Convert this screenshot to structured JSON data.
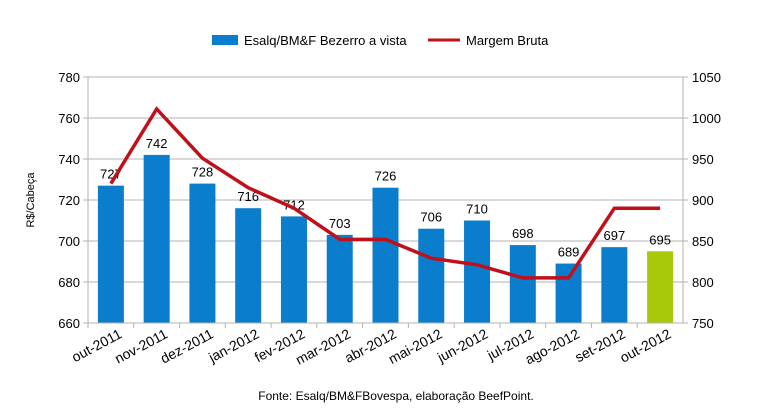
{
  "chart_data": {
    "type": "bar+line",
    "categories": [
      "out-2011",
      "nov-2011",
      "dez-2011",
      "jan-2012",
      "fev-2012",
      "mar-2012",
      "abr-2012",
      "mai-2012",
      "jun-2012",
      "jul-2012",
      "ago-2012",
      "set-2012",
      "out-2012"
    ],
    "series": [
      {
        "name": "Esalq/BM&F Bezerro a vista",
        "type": "bar",
        "axis": "left",
        "values": [
          727,
          742,
          728,
          716,
          712,
          703,
          726,
          706,
          710,
          698,
          689,
          697,
          695
        ],
        "color": "#0a7dcc",
        "highlight_last_color": "#a8c80a"
      },
      {
        "name": "Margem Bruta",
        "type": "line",
        "axis": "right",
        "values": [
          920,
          1011,
          951,
          915,
          890,
          852,
          852,
          829,
          821,
          805,
          805,
          890,
          890
        ],
        "color": "#c0101a"
      }
    ],
    "ylabel": "R$/Cabeça",
    "ylim": [
      660,
      780
    ],
    "yticks": [
      660,
      680,
      700,
      720,
      740,
      760,
      780
    ],
    "y2lim": [
      750,
      1050
    ],
    "y2ticks": [
      750,
      800,
      850,
      900,
      950,
      1000,
      1050
    ],
    "grid": true,
    "legend": "top-center",
    "footer": "Fonte: Esalq/BM&FBovespa, elaboração BeefPoint."
  }
}
